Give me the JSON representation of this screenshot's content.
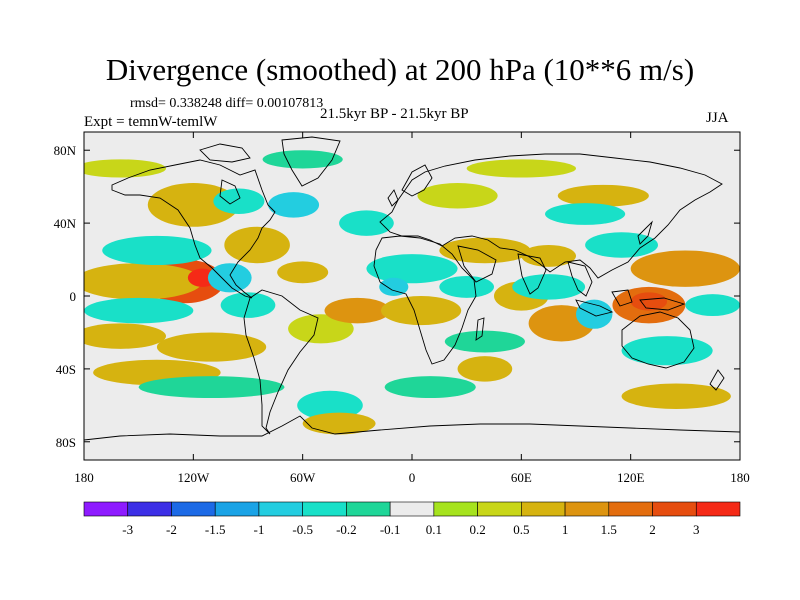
{
  "title": "Divergence (smoothed) at 200 hPa (10**6 m/s)",
  "stats": "rmsd= 0.338248 diff= 0.00107813",
  "experiment": "Expt = temnW-temlW",
  "period": "21.5kyr BP - 21.5kyr BP",
  "season": "JJA",
  "map": {
    "lon_range": [
      -180,
      180
    ],
    "lat_range": [
      -90,
      90
    ],
    "x_ticks": [
      {
        "lon": -180,
        "label": "180"
      },
      {
        "lon": -120,
        "label": "120W"
      },
      {
        "lon": -60,
        "label": "60W"
      },
      {
        "lon": 0,
        "label": "0"
      },
      {
        "lon": 60,
        "label": "60E"
      },
      {
        "lon": 120,
        "label": "120E"
      },
      {
        "lon": 180,
        "label": "180"
      }
    ],
    "y_ticks": [
      {
        "lat": 80,
        "label": "80N"
      },
      {
        "lat": 40,
        "label": "40N"
      },
      {
        "lat": 0,
        "label": "0"
      },
      {
        "lat": -40,
        "label": "40S"
      },
      {
        "lat": -80,
        "label": "80S"
      }
    ],
    "background_color": "#ececec",
    "coastline_color": "#000000",
    "anomalies": [
      {
        "lon": -125,
        "lat": 8,
        "rlon": 22,
        "rlat": 12,
        "value": 2
      },
      {
        "lon": -150,
        "lat": 8,
        "rlon": 35,
        "rlat": 10,
        "value": 0.5
      },
      {
        "lon": -160,
        "lat": -22,
        "rlon": 25,
        "rlat": 7,
        "value": 0.5
      },
      {
        "lon": -110,
        "lat": -28,
        "rlon": 30,
        "rlat": 8,
        "value": 0.5
      },
      {
        "lon": -140,
        "lat": -42,
        "rlon": 35,
        "rlat": 7,
        "value": 0.5
      },
      {
        "lon": -120,
        "lat": 50,
        "rlon": 25,
        "rlat": 12,
        "value": 0.5
      },
      {
        "lon": -85,
        "lat": 28,
        "rlon": 18,
        "rlat": 10,
        "value": 0.5
      },
      {
        "lon": -60,
        "lat": 13,
        "rlon": 14,
        "rlat": 6,
        "value": 0.5
      },
      {
        "lon": -50,
        "lat": -18,
        "rlon": 18,
        "rlat": 8,
        "value": 0.2
      },
      {
        "lon": -30,
        "lat": -8,
        "rlon": 18,
        "rlat": 7,
        "value": 1
      },
      {
        "lon": 5,
        "lat": -8,
        "rlon": 22,
        "rlat": 8,
        "value": 0.5
      },
      {
        "lon": 40,
        "lat": 25,
        "rlon": 25,
        "rlat": 7,
        "value": 0.5
      },
      {
        "lon": 75,
        "lat": 22,
        "rlon": 15,
        "rlat": 6,
        "value": 0.5
      },
      {
        "lon": 60,
        "lat": 0,
        "rlon": 15,
        "rlat": 8,
        "value": 0.5
      },
      {
        "lon": 82,
        "lat": -15,
        "rlon": 18,
        "rlat": 10,
        "value": 1
      },
      {
        "lon": 40,
        "lat": -40,
        "rlon": 15,
        "rlat": 7,
        "value": 0.5
      },
      {
        "lon": 130,
        "lat": -5,
        "rlon": 20,
        "rlat": 10,
        "value": 1.5
      },
      {
        "lon": 130,
        "lat": -3,
        "rlon": 10,
        "rlat": 5,
        "value": 2
      },
      {
        "lon": 150,
        "lat": 15,
        "rlon": 30,
        "rlat": 10,
        "value": 1
      },
      {
        "lon": 145,
        "lat": -55,
        "rlon": 30,
        "rlat": 7,
        "value": 0.5
      },
      {
        "lon": 105,
        "lat": 55,
        "rlon": 25,
        "rlat": 6,
        "value": 0.5
      },
      {
        "lon": 25,
        "lat": 55,
        "rlon": 22,
        "rlat": 7,
        "value": 0.2
      },
      {
        "lon": -115,
        "lat": 10,
        "rlon": 8,
        "rlat": 5,
        "value": 3
      },
      {
        "lon": -100,
        "lat": 10,
        "rlon": 12,
        "rlat": 8,
        "value": -1
      },
      {
        "lon": -90,
        "lat": -5,
        "rlon": 15,
        "rlat": 7,
        "value": -0.5
      },
      {
        "lon": -140,
        "lat": 25,
        "rlon": 30,
        "rlat": 8,
        "value": -0.5
      },
      {
        "lon": -150,
        "lat": -8,
        "rlon": 30,
        "rlat": 7,
        "value": -0.5
      },
      {
        "lon": -110,
        "lat": -50,
        "rlon": 40,
        "rlat": 6,
        "value": -0.2
      },
      {
        "lon": -95,
        "lat": 52,
        "rlon": 14,
        "rlat": 7,
        "value": -0.5
      },
      {
        "lon": -65,
        "lat": 50,
        "rlon": 14,
        "rlat": 7,
        "value": -1
      },
      {
        "lon": -25,
        "lat": 40,
        "rlon": 15,
        "rlat": 7,
        "value": -0.5
      },
      {
        "lon": 0,
        "lat": 15,
        "rlon": 25,
        "rlat": 8,
        "value": -0.5
      },
      {
        "lon": -10,
        "lat": 5,
        "rlon": 8,
        "rlat": 5,
        "value": -1
      },
      {
        "lon": 30,
        "lat": 5,
        "rlon": 15,
        "rlat": 6,
        "value": -0.5
      },
      {
        "lon": 75,
        "lat": 5,
        "rlon": 20,
        "rlat": 7,
        "value": -0.5
      },
      {
        "lon": 100,
        "lat": -10,
        "rlon": 10,
        "rlat": 8,
        "value": -1
      },
      {
        "lon": 140,
        "lat": -30,
        "rlon": 25,
        "rlat": 8,
        "value": -0.5
      },
      {
        "lon": 40,
        "lat": -25,
        "rlon": 22,
        "rlat": 6,
        "value": -0.2
      },
      {
        "lon": 10,
        "lat": -50,
        "rlon": 25,
        "rlat": 6,
        "value": -0.2
      },
      {
        "lon": 115,
        "lat": 28,
        "rlon": 20,
        "rlat": 7,
        "value": -0.5
      },
      {
        "lon": 95,
        "lat": 45,
        "rlon": 22,
        "rlat": 6,
        "value": -0.5
      },
      {
        "lon": 165,
        "lat": -5,
        "rlon": 15,
        "rlat": 6,
        "value": -0.5
      },
      {
        "lon": -45,
        "lat": -60,
        "rlon": 18,
        "rlat": 8,
        "value": -0.5
      },
      {
        "lon": -60,
        "lat": 75,
        "rlon": 22,
        "rlat": 5,
        "value": -0.2
      },
      {
        "lon": -160,
        "lat": 70,
        "rlon": 25,
        "rlat": 5,
        "value": 0.2
      },
      {
        "lon": 60,
        "lat": 70,
        "rlon": 30,
        "rlat": 5,
        "value": 0.2
      },
      {
        "lon": -40,
        "lat": -70,
        "rlon": 20,
        "rlat": 6,
        "value": 0.5
      }
    ]
  },
  "colorbar": {
    "colors": [
      "#8e1bff",
      "#3c2fe6",
      "#1d6ae6",
      "#1aa3e6",
      "#23cde0",
      "#19e0c8",
      "#1fd698",
      "#ececec",
      "#a6e31e",
      "#c8d619",
      "#d6b310",
      "#dd9410",
      "#e36d0e",
      "#e64d0f",
      "#f52a17"
    ],
    "levels": [
      -3,
      -2,
      -1.5,
      -1,
      -0.5,
      -0.2,
      -0.1,
      0.1,
      0.2,
      0.5,
      1,
      1.5,
      2,
      3
    ],
    "labels": [
      "-3",
      "-2",
      "-1.5",
      "-1",
      "-0.5",
      "-0.2",
      "-0.1",
      "0.1",
      "0.2",
      "0.5",
      "1",
      "1.5",
      "2",
      "3"
    ]
  }
}
